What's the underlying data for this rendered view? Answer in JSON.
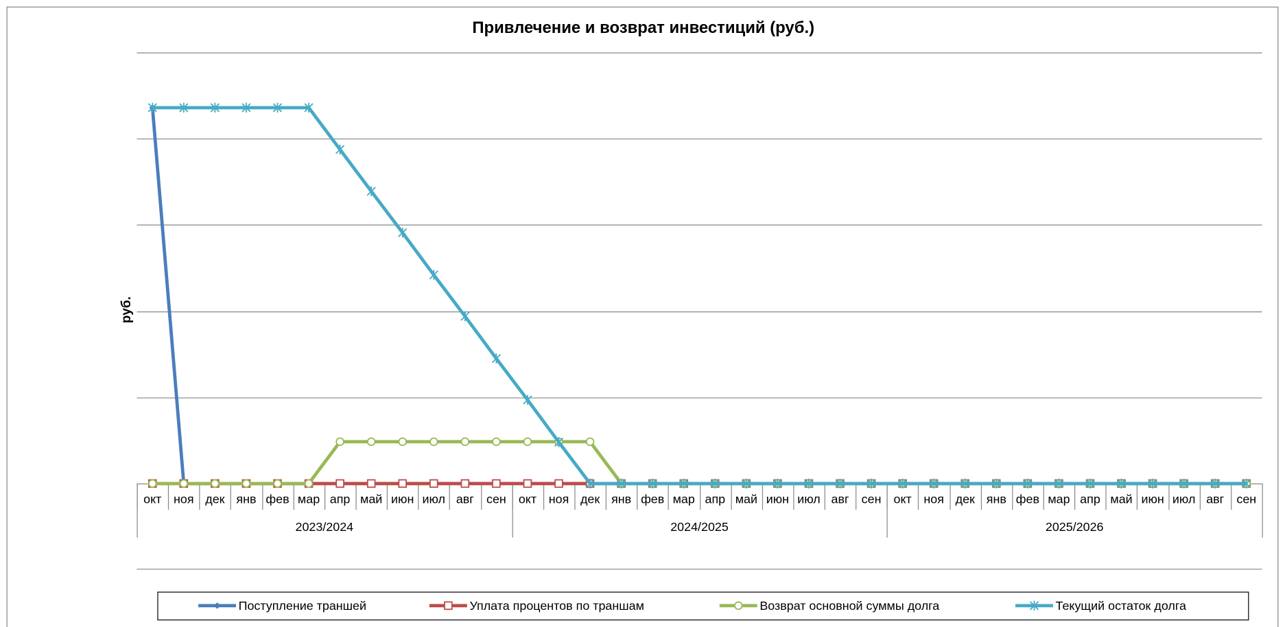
{
  "chart_data": {
    "type": "line",
    "title": "Привлечение и возврат инвестиций (руб.)",
    "y_label": "руб.",
    "categories": [
      "окт",
      "ноя",
      "дек",
      "янв",
      "фев",
      "мар",
      "апр",
      "май",
      "июн",
      "июл",
      "авг",
      "сен",
      "окт",
      "ноя",
      "дек",
      "янв",
      "фев",
      "мар",
      "апр",
      "май",
      "июн",
      "июл",
      "авг",
      "сен",
      "окт",
      "ноя",
      "дек",
      "янв",
      "фев",
      "мар",
      "апр",
      "май",
      "июн",
      "июл",
      "авг",
      "сен"
    ],
    "groups": [
      "2023/2024",
      "2024/2025",
      "2025/2026"
    ],
    "ylim": [
      0,
      5
    ],
    "yticks": [
      0,
      1,
      2,
      3,
      4,
      5
    ],
    "grid": true,
    "series": [
      {
        "name": "Поступление траншей",
        "color": "#4a7ebb",
        "marker": "diamond",
        "values": [
          4.36,
          0,
          0,
          0,
          0,
          0,
          0,
          0,
          0,
          0,
          0,
          0,
          0,
          0,
          0,
          0,
          0,
          0,
          0,
          0,
          0,
          0,
          0,
          0,
          0,
          0,
          0,
          0,
          0,
          0,
          0,
          0,
          0,
          0,
          0,
          0
        ]
      },
      {
        "name": "Уплата процентов по траншам",
        "color": "#be4b48",
        "marker": "square",
        "values": [
          0,
          0,
          0,
          0,
          0,
          0,
          0,
          0,
          0,
          0,
          0,
          0,
          0,
          0,
          0,
          0,
          0,
          0,
          0,
          0,
          0,
          0,
          0,
          0,
          0,
          0,
          0,
          0,
          0,
          0,
          0,
          0,
          0,
          0,
          0,
          0
        ]
      },
      {
        "name": "Возврат основной суммы долга",
        "color": "#98b954",
        "marker": "circle",
        "values": [
          0,
          0,
          0,
          0,
          0,
          0,
          0.485,
          0.485,
          0.485,
          0.485,
          0.485,
          0.485,
          0.485,
          0.485,
          0.485,
          0,
          0,
          0,
          0,
          0,
          0,
          0,
          0,
          0,
          0,
          0,
          0,
          0,
          0,
          0,
          0,
          0,
          0,
          0,
          0,
          0
        ]
      },
      {
        "name": "Текущий остаток долга",
        "color": "#46aac5",
        "marker": "star",
        "values": [
          4.36,
          4.36,
          4.36,
          4.36,
          4.36,
          4.36,
          3.875,
          3.39,
          2.91,
          2.42,
          1.94,
          1.45,
          0.97,
          0.48,
          0,
          0,
          0,
          0,
          0,
          0,
          0,
          0,
          0,
          0,
          0,
          0,
          0,
          0,
          0,
          0,
          0,
          0,
          0,
          0,
          0,
          0
        ]
      }
    ],
    "legend": "bottom"
  }
}
